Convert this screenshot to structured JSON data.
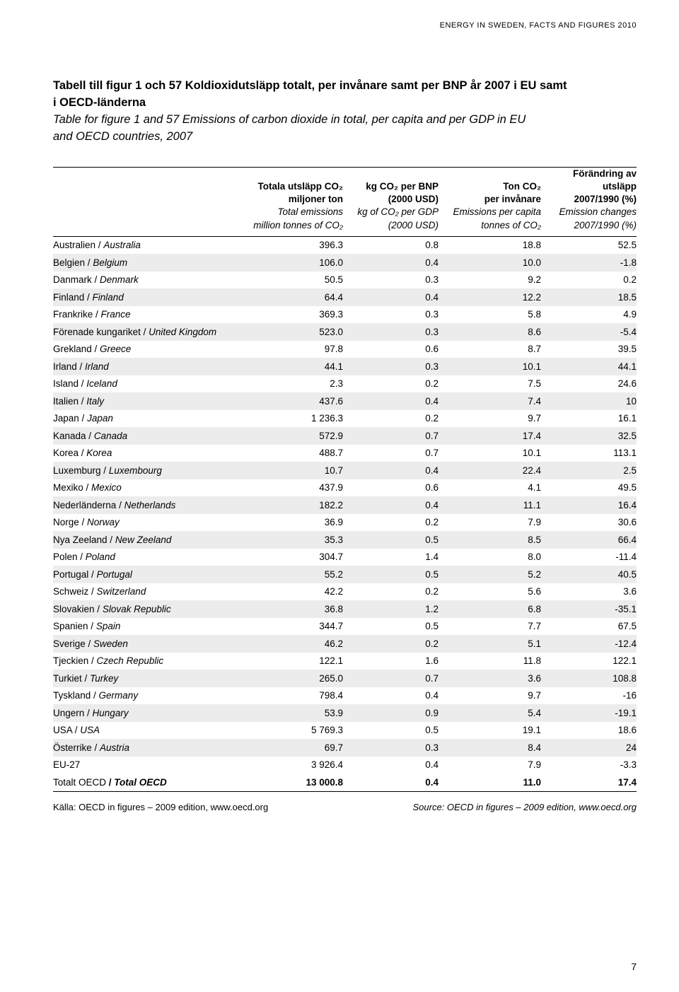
{
  "runningHeader": "ENERGY IN SWEDEN, FACTS AND FIGURES 2010",
  "title": {
    "sv_line1": "Tabell till figur 1 och 57 Koldioxidutsläpp totalt, per invånare samt per BNP år 2007 i EU samt",
    "sv_line2": "i OECD-länderna",
    "en_line1": "Table for figure 1 and 57 Emissions of carbon dioxide in total, per capita and per GDP in EU",
    "en_line2": "and OECD countries, 2007"
  },
  "columns": [
    {
      "sv": [
        "Totala utsläpp CO₂",
        "miljoner ton"
      ],
      "en": [
        "Total emissions",
        "million tonnes of CO₂"
      ]
    },
    {
      "sv": [
        "kg CO₂ per BNP",
        "(2000 USD)"
      ],
      "en": [
        "kg of CO₂ per GDP",
        "(2000 USD)"
      ]
    },
    {
      "sv": [
        "Ton CO₂",
        "per invånare"
      ],
      "en": [
        "Emissions per capita",
        "tonnes of CO₂"
      ]
    },
    {
      "sv": [
        "Förändring av utsläpp",
        "2007/1990 (%)"
      ],
      "en": [
        "Emission changes",
        "2007/1990 (%)"
      ]
    }
  ],
  "rows": [
    {
      "sv": "Australien",
      "en": "Australia",
      "v": [
        "396.3",
        "0.8",
        "18.8",
        "52.5"
      ]
    },
    {
      "sv": "Belgien",
      "en": "Belgium",
      "v": [
        "106.0",
        "0.4",
        "10.0",
        "-1.8"
      ]
    },
    {
      "sv": "Danmark",
      "en": "Denmark",
      "v": [
        "50.5",
        "0.3",
        "9.2",
        "0.2"
      ]
    },
    {
      "sv": "Finland",
      "en": "Finland",
      "v": [
        "64.4",
        "0.4",
        "12.2",
        "18.5"
      ]
    },
    {
      "sv": "Frankrike",
      "en": "France",
      "v": [
        "369.3",
        "0.3",
        "5.8",
        "4.9"
      ]
    },
    {
      "sv": "Förenade kungariket",
      "en": "United Kingdom",
      "v": [
        "523.0",
        "0.3",
        "8.6",
        "-5.4"
      ]
    },
    {
      "sv": "Grekland",
      "en": "Greece",
      "v": [
        "97.8",
        "0.6",
        "8.7",
        "39.5"
      ]
    },
    {
      "sv": "Irland",
      "en": "Irland",
      "v": [
        "44.1",
        "0.3",
        "10.1",
        "44.1"
      ]
    },
    {
      "sv": "Island",
      "en": "Iceland",
      "v": [
        "2.3",
        "0.2",
        "7.5",
        "24.6"
      ]
    },
    {
      "sv": "Italien",
      "en": "Italy",
      "v": [
        "437.6",
        "0.4",
        "7.4",
        "10"
      ]
    },
    {
      "sv": "Japan",
      "en": "Japan",
      "v": [
        "1 236.3",
        "0.2",
        "9.7",
        "16.1"
      ]
    },
    {
      "sv": "Kanada",
      "en": "Canada",
      "v": [
        "572.9",
        "0.7",
        "17.4",
        "32.5"
      ]
    },
    {
      "sv": "Korea",
      "en": "Korea",
      "v": [
        "488.7",
        "0.7",
        "10.1",
        "113.1"
      ]
    },
    {
      "sv": "Luxemburg",
      "en": "Luxembourg",
      "v": [
        "10.7",
        "0.4",
        "22.4",
        "2.5"
      ]
    },
    {
      "sv": "Mexiko",
      "en": "Mexico",
      "v": [
        "437.9",
        "0.6",
        "4.1",
        "49.5"
      ]
    },
    {
      "sv": "Nederländerna",
      "en": "Netherlands",
      "v": [
        "182.2",
        "0.4",
        "11.1",
        "16.4"
      ]
    },
    {
      "sv": "Norge",
      "en": "Norway",
      "v": [
        "36.9",
        "0.2",
        "7.9",
        "30.6"
      ]
    },
    {
      "sv": "Nya Zeeland",
      "en": "New Zeeland",
      "v": [
        "35.3",
        "0.5",
        "8.5",
        "66.4"
      ]
    },
    {
      "sv": "Polen",
      "en": "Poland",
      "v": [
        "304.7",
        "1.4",
        "8.0",
        "-11.4"
      ]
    },
    {
      "sv": "Portugal",
      "en": "Portugal",
      "v": [
        "55.2",
        "0.5",
        "5.2",
        "40.5"
      ]
    },
    {
      "sv": "Schweiz",
      "en": "Switzerland",
      "v": [
        "42.2",
        "0.2",
        "5.6",
        "3.6"
      ]
    },
    {
      "sv": "Slovakien",
      "en": "Slovak Republic",
      "v": [
        "36.8",
        "1.2",
        "6.8",
        "-35.1"
      ]
    },
    {
      "sv": "Spanien",
      "en": "Spain",
      "v": [
        "344.7",
        "0.5",
        "7.7",
        "67.5"
      ]
    },
    {
      "sv": "Sverige",
      "en": "Sweden",
      "v": [
        "46.2",
        "0.2",
        "5.1",
        "-12.4"
      ]
    },
    {
      "sv": "Tjeckien",
      "en": "Czech Republic",
      "v": [
        "122.1",
        "1.6",
        "11.8",
        "122.1"
      ]
    },
    {
      "sv": "Turkiet",
      "en": "Turkey",
      "v": [
        "265.0",
        "0.7",
        "3.6",
        "108.8"
      ]
    },
    {
      "sv": "Tyskland",
      "en": "Germany",
      "v": [
        "798.4",
        "0.4",
        "9.7",
        "-16"
      ]
    },
    {
      "sv": "Ungern",
      "en": "Hungary",
      "v": [
        "53.9",
        "0.9",
        "5.4",
        "-19.1"
      ]
    },
    {
      "sv": "USA",
      "en": "USA",
      "v": [
        "5 769.3",
        "0.5",
        "19.1",
        "18.6"
      ]
    },
    {
      "sv": "Österrike",
      "en": "Austria",
      "v": [
        "69.7",
        "0.3",
        "8.4",
        "24"
      ]
    },
    {
      "sv": "EU-27",
      "en": "",
      "v": [
        "3 926.4",
        "0.4",
        "7.9",
        "-3.3"
      ],
      "noslash": true
    }
  ],
  "totalRow": {
    "sv": "Totalt OECD",
    "en": "Total OECD",
    "v": [
      "13 000.8",
      "0.4",
      "11.0",
      "17.4"
    ]
  },
  "source": {
    "sv": "Källa: OECD in figures – 2009 edition, www.oecd.org",
    "en": "Source: OECD in figures – 2009 edition, www.oecd.org"
  },
  "pageNumber": "7",
  "style": {
    "shade_color": "#ececec",
    "text_color": "#000000",
    "font_family": "Arial, Helvetica, sans-serif"
  }
}
